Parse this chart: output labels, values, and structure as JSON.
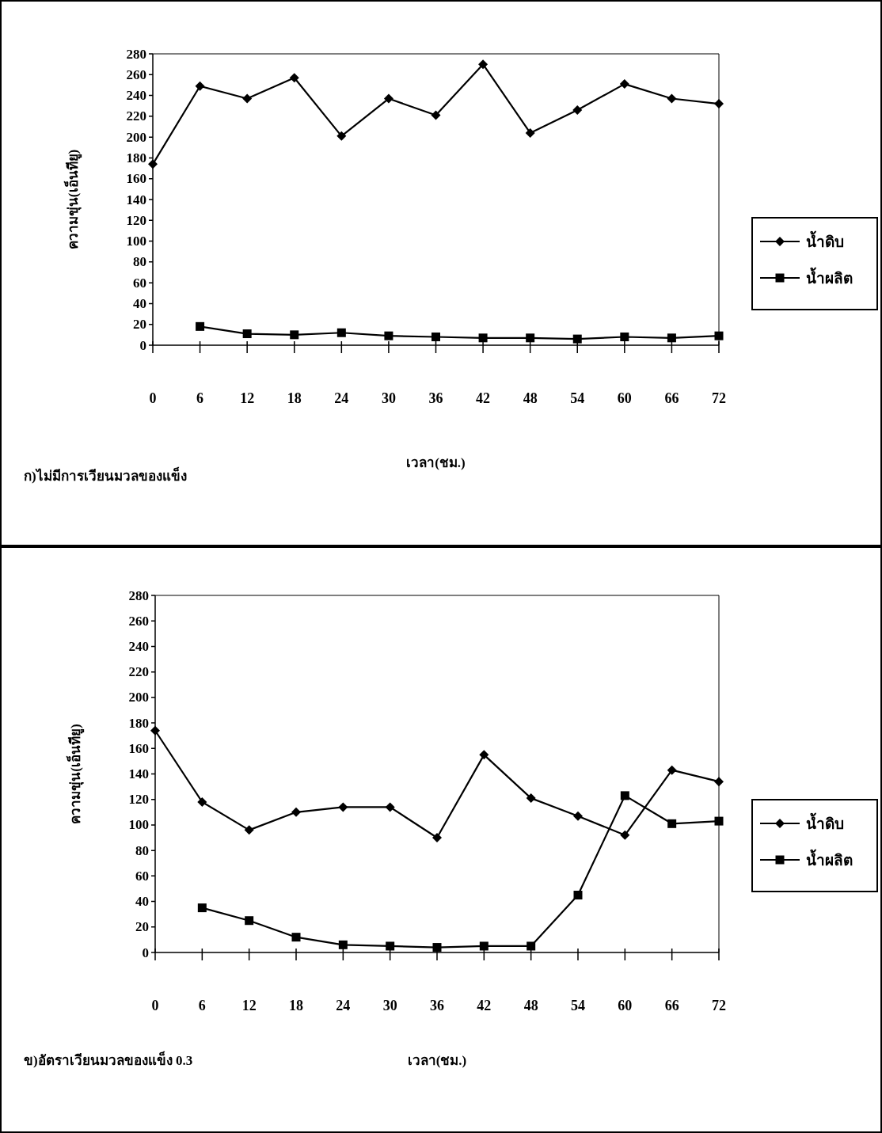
{
  "chart_data": [
    {
      "type": "line",
      "xlabel": "เวลา(ชม.)",
      "ylabel": "ความขุ่น(เอ็นทียู)",
      "annotations": [
        "ก)ไม่มีการเวียนมวลของแข็ง"
      ],
      "x": [
        0,
        6,
        12,
        18,
        24,
        30,
        36,
        42,
        48,
        54,
        60,
        66,
        72
      ],
      "xlim": [
        0,
        72
      ],
      "xticks": [
        0,
        6,
        12,
        18,
        24,
        30,
        36,
        42,
        48,
        54,
        60,
        66,
        72
      ],
      "ylim": [
        0,
        280
      ],
      "yticks": [
        0,
        20,
        40,
        60,
        80,
        100,
        120,
        140,
        160,
        180,
        200,
        220,
        240,
        260,
        280
      ],
      "grid": false,
      "legend": "right",
      "line_style": "solid",
      "series": [
        {
          "name": "น้ำดิบ",
          "color": "#000000",
          "marker": "diamond",
          "values": [
            174,
            249,
            237,
            257,
            201,
            237,
            221,
            270,
            204,
            226,
            251,
            237,
            232
          ]
        },
        {
          "name": "น้ำผลิต",
          "color": "#000000",
          "marker": "square",
          "values": [
            null,
            18,
            11,
            10,
            12,
            9,
            8,
            7,
            7,
            6,
            8,
            7,
            9
          ]
        }
      ]
    },
    {
      "type": "line",
      "xlabel": "เวลา(ชม.)",
      "ylabel": "ความขุ่น(เอ็นทียู)",
      "annotations": [
        "ข)อัตราเวียนมวลของแข็ง 0.3"
      ],
      "x": [
        0,
        6,
        12,
        18,
        24,
        30,
        36,
        42,
        48,
        54,
        60,
        66,
        72
      ],
      "xlim": [
        0,
        72
      ],
      "xticks": [
        0,
        6,
        12,
        18,
        24,
        30,
        36,
        42,
        48,
        54,
        60,
        66,
        72
      ],
      "ylim": [
        0,
        280
      ],
      "yticks": [
        0,
        20,
        40,
        60,
        80,
        100,
        120,
        140,
        160,
        180,
        200,
        220,
        240,
        260,
        280
      ],
      "grid": false,
      "legend": "right",
      "line_style": "solid",
      "series": [
        {
          "name": "น้ำดิบ",
          "color": "#000000",
          "marker": "diamond",
          "values": [
            174,
            118,
            96,
            110,
            114,
            114,
            90,
            155,
            121,
            107,
            92,
            143,
            134
          ]
        },
        {
          "name": "น้ำผลิต",
          "color": "#000000",
          "marker": "square",
          "values": [
            null,
            35,
            25,
            12,
            6,
            5,
            4,
            5,
            5,
            45,
            123,
            101,
            103
          ]
        }
      ]
    }
  ]
}
